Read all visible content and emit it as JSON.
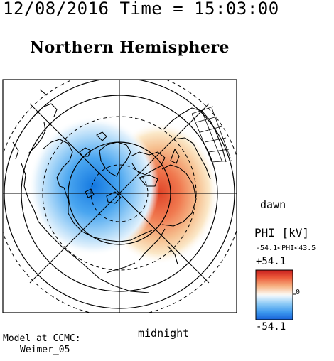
{
  "header": {
    "timestamp": "12/08/2016 Time = 15:03:00",
    "hemisphere_title": "Northern Hemisphere"
  },
  "map": {
    "label_dawn": "dawn",
    "label_midnight": "midnight",
    "positive_cell_color": "#e4513a",
    "negative_cell_color": "#1f86e6",
    "grid_solid_color": "#000000",
    "coastline_color": "#000000"
  },
  "colorbar": {
    "title": "PHI [kV]",
    "range_text": "-54.1<PHI<43.5",
    "max_label": "+54.1",
    "min_label": "-54.1",
    "zero_label": "0",
    "max_value": 54.1,
    "min_value": -54.1
  },
  "footer": {
    "model_line1": "Model at CCMC:",
    "model_line2": "Weimer_05"
  }
}
